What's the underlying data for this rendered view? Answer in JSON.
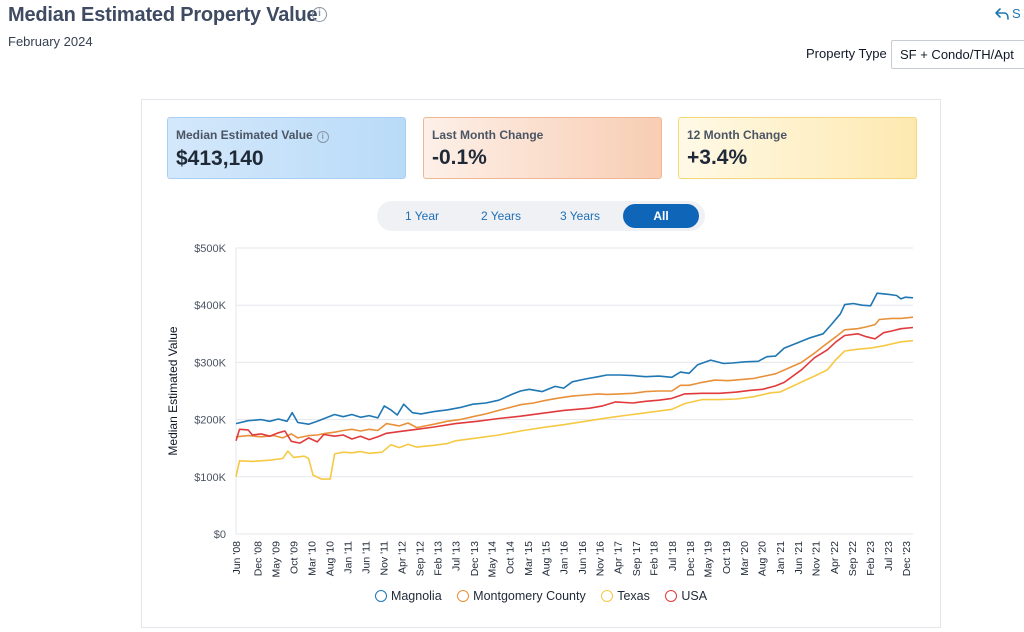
{
  "header": {
    "title": "Median Estimated Property Value",
    "date": "February 2024",
    "share_label": "S"
  },
  "filters": {
    "property_type_label": "Property Type",
    "property_type_value": "SF + Condo/TH/Apt"
  },
  "cards": [
    {
      "label": "Median Estimated Value",
      "value": "$413,140"
    },
    {
      "label": "Last Month Change",
      "value": "-0.1%"
    },
    {
      "label": "12 Month Change",
      "value": "+3.4%"
    }
  ],
  "range_tabs": [
    "1 Year",
    "2 Years",
    "3 Years",
    "All"
  ],
  "range_active": "All",
  "chart_data": {
    "type": "line",
    "title": "",
    "xlabel": "",
    "ylabel": "Median Estimated Value",
    "ylim": [
      0,
      500000
    ],
    "yticks": [
      0,
      100000,
      200000,
      300000,
      400000,
      500000
    ],
    "ytick_labels": [
      "$0",
      "$100K",
      "$200K",
      "$300K",
      "$400K",
      "$500K"
    ],
    "x_range": [
      2008.42,
      2024.08
    ],
    "xticks": [
      {
        "label": "Jun '08",
        "t": 2008.42
      },
      {
        "label": "Dec '08",
        "t": 2008.92
      },
      {
        "label": "May '09",
        "t": 2009.33
      },
      {
        "label": "Oct '09",
        "t": 2009.75
      },
      {
        "label": "Mar '10",
        "t": 2010.17
      },
      {
        "label": "Aug '10",
        "t": 2010.58
      },
      {
        "label": "Jan '11",
        "t": 2011.0
      },
      {
        "label": "Jun '11",
        "t": 2011.42
      },
      {
        "label": "Nov '11",
        "t": 2011.83
      },
      {
        "label": "Apr '12",
        "t": 2012.25
      },
      {
        "label": "Sep '12",
        "t": 2012.67
      },
      {
        "label": "Feb '13",
        "t": 2013.08
      },
      {
        "label": "Jul '13",
        "t": 2013.5
      },
      {
        "label": "Dec '13",
        "t": 2013.92
      },
      {
        "label": "May '14",
        "t": 2014.33
      },
      {
        "label": "Oct '14",
        "t": 2014.75
      },
      {
        "label": "Mar '15",
        "t": 2015.17
      },
      {
        "label": "Aug '15",
        "t": 2015.58
      },
      {
        "label": "Jan '16",
        "t": 2016.0
      },
      {
        "label": "Jun '16",
        "t": 2016.42
      },
      {
        "label": "Nov '16",
        "t": 2016.83
      },
      {
        "label": "Apr '17",
        "t": 2017.25
      },
      {
        "label": "Sep '17",
        "t": 2017.67
      },
      {
        "label": "Feb '18",
        "t": 2018.08
      },
      {
        "label": "Jul '18",
        "t": 2018.5
      },
      {
        "label": "Dec '18",
        "t": 2018.92
      },
      {
        "label": "May '19",
        "t": 2019.33
      },
      {
        "label": "Oct '19",
        "t": 2019.75
      },
      {
        "label": "Mar '20",
        "t": 2020.17
      },
      {
        "label": "Aug '20",
        "t": 2020.58
      },
      {
        "label": "Jan '21",
        "t": 2021.0
      },
      {
        "label": "Jun '21",
        "t": 2021.42
      },
      {
        "label": "Nov '21",
        "t": 2021.83
      },
      {
        "label": "Apr '22",
        "t": 2022.25
      },
      {
        "label": "Sep '22",
        "t": 2022.67
      },
      {
        "label": "Feb '23",
        "t": 2023.08
      },
      {
        "label": "Jul '23",
        "t": 2023.5
      },
      {
        "label": "Dec '23",
        "t": 2023.92
      }
    ],
    "series": [
      {
        "name": "Magnolia",
        "color": "#1f77b4",
        "points": [
          [
            2008.42,
            193000
          ],
          [
            2008.7,
            198000
          ],
          [
            2009.0,
            200000
          ],
          [
            2009.2,
            197000
          ],
          [
            2009.4,
            201000
          ],
          [
            2009.6,
            197000
          ],
          [
            2009.72,
            212000
          ],
          [
            2009.85,
            195000
          ],
          [
            2010.1,
            192000
          ],
          [
            2010.3,
            197000
          ],
          [
            2010.5,
            203000
          ],
          [
            2010.7,
            209000
          ],
          [
            2010.9,
            205000
          ],
          [
            2011.1,
            209000
          ],
          [
            2011.3,
            204000
          ],
          [
            2011.5,
            207000
          ],
          [
            2011.7,
            203000
          ],
          [
            2011.85,
            224000
          ],
          [
            2012.0,
            217000
          ],
          [
            2012.15,
            208000
          ],
          [
            2012.3,
            227000
          ],
          [
            2012.5,
            212000
          ],
          [
            2012.7,
            210000
          ],
          [
            2013.0,
            214000
          ],
          [
            2013.3,
            217000
          ],
          [
            2013.6,
            221000
          ],
          [
            2013.9,
            227000
          ],
          [
            2014.2,
            229000
          ],
          [
            2014.5,
            234000
          ],
          [
            2014.8,
            244000
          ],
          [
            2015.0,
            250000
          ],
          [
            2015.2,
            253000
          ],
          [
            2015.5,
            249000
          ],
          [
            2015.8,
            258000
          ],
          [
            2016.0,
            255000
          ],
          [
            2016.2,
            266000
          ],
          [
            2016.5,
            271000
          ],
          [
            2016.8,
            275000
          ],
          [
            2017.0,
            278000
          ],
          [
            2017.3,
            278000
          ],
          [
            2017.6,
            277000
          ],
          [
            2017.9,
            275000
          ],
          [
            2018.2,
            276000
          ],
          [
            2018.5,
            274000
          ],
          [
            2018.7,
            283000
          ],
          [
            2018.9,
            281000
          ],
          [
            2019.1,
            296000
          ],
          [
            2019.4,
            304000
          ],
          [
            2019.7,
            298000
          ],
          [
            2019.9,
            299000
          ],
          [
            2020.2,
            301000
          ],
          [
            2020.5,
            302000
          ],
          [
            2020.7,
            310000
          ],
          [
            2020.9,
            311000
          ],
          [
            2021.1,
            325000
          ],
          [
            2021.4,
            334000
          ],
          [
            2021.7,
            343000
          ],
          [
            2022.0,
            350000
          ],
          [
            2022.2,
            367000
          ],
          [
            2022.4,
            385000
          ],
          [
            2022.5,
            401000
          ],
          [
            2022.7,
            403000
          ],
          [
            2022.9,
            400000
          ],
          [
            2023.1,
            399000
          ],
          [
            2023.25,
            421000
          ],
          [
            2023.5,
            419000
          ],
          [
            2023.7,
            417000
          ],
          [
            2023.8,
            411000
          ],
          [
            2023.9,
            414000
          ],
          [
            2024.08,
            413000
          ]
        ]
      },
      {
        "name": "Montgomery County",
        "color": "#e8913a",
        "points": [
          [
            2008.42,
            170000
          ],
          [
            2008.7,
            172000
          ],
          [
            2009.0,
            170000
          ],
          [
            2009.3,
            172000
          ],
          [
            2009.5,
            168000
          ],
          [
            2009.7,
            175000
          ],
          [
            2009.85,
            168000
          ],
          [
            2010.1,
            172000
          ],
          [
            2010.3,
            173000
          ],
          [
            2010.5,
            176000
          ],
          [
            2010.7,
            178000
          ],
          [
            2010.9,
            181000
          ],
          [
            2011.1,
            183000
          ],
          [
            2011.3,
            180000
          ],
          [
            2011.5,
            183000
          ],
          [
            2011.7,
            181000
          ],
          [
            2011.9,
            193000
          ],
          [
            2012.2,
            189000
          ],
          [
            2012.4,
            194000
          ],
          [
            2012.6,
            186000
          ],
          [
            2012.8,
            189000
          ],
          [
            2013.0,
            192000
          ],
          [
            2013.3,
            197000
          ],
          [
            2013.6,
            200000
          ],
          [
            2013.9,
            205000
          ],
          [
            2014.2,
            210000
          ],
          [
            2014.5,
            216000
          ],
          [
            2014.8,
            222000
          ],
          [
            2015.0,
            226000
          ],
          [
            2015.3,
            229000
          ],
          [
            2015.6,
            234000
          ],
          [
            2015.9,
            238000
          ],
          [
            2016.2,
            241000
          ],
          [
            2016.5,
            243000
          ],
          [
            2016.8,
            245000
          ],
          [
            2017.0,
            244000
          ],
          [
            2017.3,
            245000
          ],
          [
            2017.6,
            246000
          ],
          [
            2017.9,
            249000
          ],
          [
            2018.2,
            250000
          ],
          [
            2018.5,
            250000
          ],
          [
            2018.7,
            260000
          ],
          [
            2018.9,
            260000
          ],
          [
            2019.2,
            265000
          ],
          [
            2019.5,
            269000
          ],
          [
            2019.8,
            268000
          ],
          [
            2020.1,
            270000
          ],
          [
            2020.4,
            272000
          ],
          [
            2020.7,
            277000
          ],
          [
            2020.9,
            280000
          ],
          [
            2021.2,
            290000
          ],
          [
            2021.5,
            300000
          ],
          [
            2021.8,
            316000
          ],
          [
            2022.0,
            328000
          ],
          [
            2022.3,
            345000
          ],
          [
            2022.5,
            357000
          ],
          [
            2022.8,
            359000
          ],
          [
            2023.0,
            362000
          ],
          [
            2023.2,
            366000
          ],
          [
            2023.3,
            375000
          ],
          [
            2023.6,
            377000
          ],
          [
            2023.8,
            377000
          ],
          [
            2024.08,
            379000
          ]
        ]
      },
      {
        "name": "Texas",
        "color": "#f6c944",
        "points": [
          [
            2008.42,
            100000
          ],
          [
            2008.5,
            128000
          ],
          [
            2008.8,
            127000
          ],
          [
            2009.2,
            129000
          ],
          [
            2009.5,
            132000
          ],
          [
            2009.62,
            145000
          ],
          [
            2009.75,
            134000
          ],
          [
            2010.0,
            136000
          ],
          [
            2010.1,
            132000
          ],
          [
            2010.2,
            103000
          ],
          [
            2010.4,
            96000
          ],
          [
            2010.6,
            96000
          ],
          [
            2010.7,
            140000
          ],
          [
            2010.9,
            143000
          ],
          [
            2011.1,
            142000
          ],
          [
            2011.3,
            144000
          ],
          [
            2011.5,
            141000
          ],
          [
            2011.8,
            143000
          ],
          [
            2012.0,
            156000
          ],
          [
            2012.2,
            151000
          ],
          [
            2012.4,
            157000
          ],
          [
            2012.6,
            152000
          ],
          [
            2013.0,
            155000
          ],
          [
            2013.3,
            158000
          ],
          [
            2013.5,
            163000
          ],
          [
            2014.0,
            168000
          ],
          [
            2014.5,
            173000
          ],
          [
            2015.0,
            180000
          ],
          [
            2015.5,
            186000
          ],
          [
            2016.0,
            191000
          ],
          [
            2016.5,
            197000
          ],
          [
            2017.0,
            203000
          ],
          [
            2017.5,
            208000
          ],
          [
            2018.0,
            213000
          ],
          [
            2018.5,
            218000
          ],
          [
            2018.8,
            228000
          ],
          [
            2019.2,
            235000
          ],
          [
            2019.6,
            235000
          ],
          [
            2020.0,
            236000
          ],
          [
            2020.4,
            240000
          ],
          [
            2020.8,
            247000
          ],
          [
            2021.0,
            248000
          ],
          [
            2021.4,
            262000
          ],
          [
            2021.8,
            276000
          ],
          [
            2022.1,
            287000
          ],
          [
            2022.3,
            305000
          ],
          [
            2022.5,
            320000
          ],
          [
            2022.8,
            323000
          ],
          [
            2023.1,
            325000
          ],
          [
            2023.4,
            329000
          ],
          [
            2023.8,
            336000
          ],
          [
            2024.08,
            338000
          ]
        ]
      },
      {
        "name": "USA",
        "color": "#e03a3c",
        "points": [
          [
            2008.42,
            163000
          ],
          [
            2008.5,
            183000
          ],
          [
            2008.7,
            182000
          ],
          [
            2008.8,
            173000
          ],
          [
            2009.0,
            175000
          ],
          [
            2009.2,
            171000
          ],
          [
            2009.4,
            177000
          ],
          [
            2009.55,
            180000
          ],
          [
            2009.7,
            162000
          ],
          [
            2009.9,
            159000
          ],
          [
            2010.1,
            168000
          ],
          [
            2010.3,
            161000
          ],
          [
            2010.45,
            174000
          ],
          [
            2010.7,
            171000
          ],
          [
            2010.9,
            173000
          ],
          [
            2011.1,
            166000
          ],
          [
            2011.3,
            171000
          ],
          [
            2011.5,
            165000
          ],
          [
            2011.7,
            170000
          ],
          [
            2011.9,
            176000
          ],
          [
            2012.2,
            179000
          ],
          [
            2012.6,
            183000
          ],
          [
            2013.0,
            187000
          ],
          [
            2013.5,
            193000
          ],
          [
            2014.0,
            197000
          ],
          [
            2014.5,
            202000
          ],
          [
            2015.0,
            206000
          ],
          [
            2015.5,
            211000
          ],
          [
            2016.0,
            216000
          ],
          [
            2016.3,
            218000
          ],
          [
            2016.6,
            220000
          ],
          [
            2016.9,
            224000
          ],
          [
            2017.2,
            231000
          ],
          [
            2017.6,
            229000
          ],
          [
            2017.9,
            232000
          ],
          [
            2018.2,
            234000
          ],
          [
            2018.5,
            237000
          ],
          [
            2018.8,
            245000
          ],
          [
            2019.2,
            246000
          ],
          [
            2019.6,
            246000
          ],
          [
            2020.0,
            248000
          ],
          [
            2020.3,
            251000
          ],
          [
            2020.6,
            253000
          ],
          [
            2020.9,
            259000
          ],
          [
            2021.1,
            265000
          ],
          [
            2021.5,
            287000
          ],
          [
            2021.8,
            308000
          ],
          [
            2022.1,
            322000
          ],
          [
            2022.3,
            336000
          ],
          [
            2022.5,
            347000
          ],
          [
            2022.8,
            350000
          ],
          [
            2023.0,
            345000
          ],
          [
            2023.2,
            341000
          ],
          [
            2023.4,
            352000
          ],
          [
            2023.6,
            355000
          ],
          [
            2023.8,
            359000
          ],
          [
            2024.08,
            361000
          ]
        ]
      }
    ]
  }
}
